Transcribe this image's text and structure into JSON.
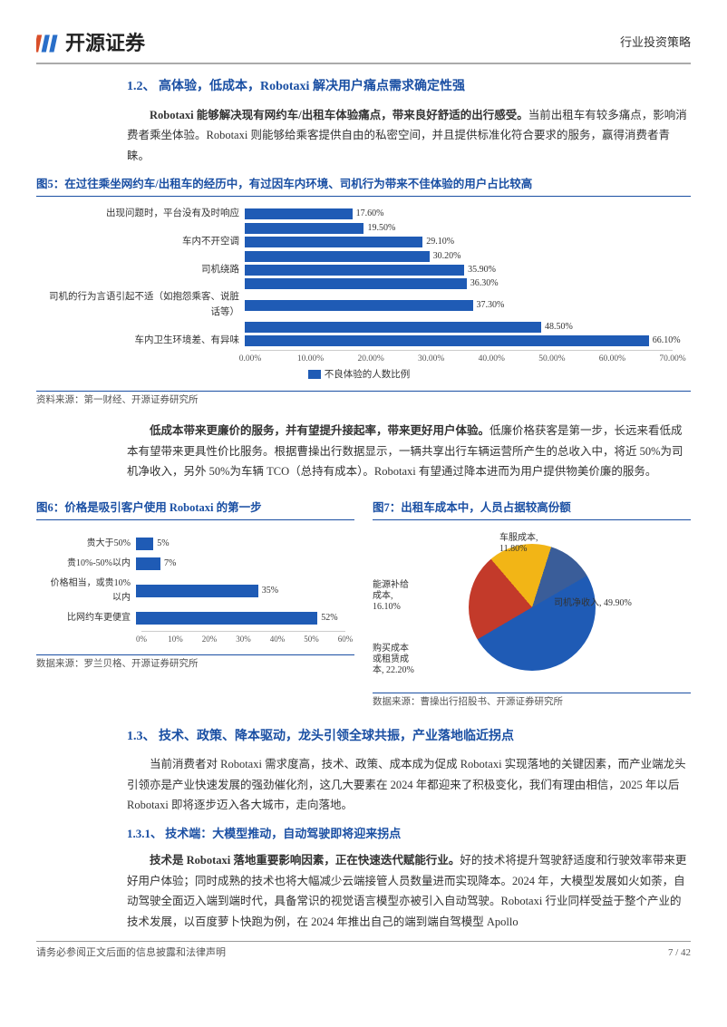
{
  "header": {
    "logo_text": "开源证券",
    "category": "行业投资策略"
  },
  "sec12": {
    "title": "1.2、 高体验，低成本，Robotaxi 解决用户痛点需求确定性强",
    "p1_bold": "Robotaxi 能够解决现有网约车/出租车体验痛点，带来良好舒适的出行感受。",
    "p1_rest": "当前出租车有较多痛点，影响消费者乘坐体验。Robotaxi 则能够给乘客提供自由的私密空间，并且提供标准化符合要求的服务，赢得消费者青睐。"
  },
  "fig5": {
    "title": "图5：在过往乘坐网约车/出租车的经历中，有过因车内环境、司机行为带来不佳体验的用户占比较高",
    "type": "bar_horizontal",
    "xmax": 70,
    "xtick_step": 10,
    "bar_color": "#1f5bb5",
    "categories": [
      "出现问题时，平台没有及时响应",
      "",
      "车内不开空调",
      "",
      "司机绕路",
      "",
      "司机的行为言语引起不适（如抱怨乘客、说脏话等）",
      "",
      "车内卫生环境差、有异味"
    ],
    "values": [
      17.6,
      19.5,
      29.1,
      30.2,
      35.9,
      36.3,
      37.3,
      48.5,
      66.1
    ],
    "legend": "不良体验的人数比例",
    "source": "资料来源：第一财经、开源证券研究所"
  },
  "p2": {
    "bold": "低成本带来更廉价的服务，并有望提升接起率，带来更好用户体验。",
    "rest": "低廉价格获客是第一步，长远来看低成本有望带来更具性价比服务。根据曹操出行数据显示，一辆共享出行车辆运营所产生的总收入中，将近 50%为司机净收入，另外 50%为车辆 TCO（总持有成本）。Robotaxi 有望通过降本进而为用户提供物美价廉的服务。"
  },
  "fig6": {
    "title": "图6：价格是吸引客户使用 Robotaxi 的第一步",
    "type": "bar_horizontal",
    "xmax": 60,
    "xtick_step": 10,
    "bar_color": "#1f5bb5",
    "categories": [
      "贵大于50%",
      "贵10%-50%以内",
      "价格相当，或贵10%以内",
      "比网约车更便宜"
    ],
    "values": [
      5,
      7,
      35,
      52
    ],
    "source": "数据来源：罗兰贝格、开源证券研究所"
  },
  "fig7": {
    "title": "图7：出租车成本中，人员占据较高份额",
    "type": "pie",
    "slices": [
      {
        "label": "司机净收入",
        "value": 49.9,
        "color": "#1f5bb5"
      },
      {
        "label": "购买成本或租赁成本",
        "value": 22.2,
        "color": "#c33a2a"
      },
      {
        "label": "能源补给成本",
        "value": 16.1,
        "color": "#f2b516"
      },
      {
        "label": "车服成本",
        "value": 11.8,
        "color": "#3a5d99"
      }
    ],
    "source": "数据来源：曹操出行招股书、开源证券研究所"
  },
  "sec13": {
    "title": "1.3、 技术、政策、降本驱动，龙头引领全球共振，产业落地临近拐点",
    "p1": "当前消费者对 Robotaxi 需求度高，技术、政策、成本成为促成 Robotaxi 实现落地的关键因素，而产业端龙头引领亦是产业快速发展的强劲催化剂，这几大要素在 2024 年都迎来了积极变化，我们有理由相信，2025 年以后 Robotaxi 即将逐步迈入各大城市，走向落地。",
    "sub_title": "1.3.1、 技术端：大模型推动，自动驾驶即将迎来拐点",
    "p2_bold": "技术是 Robotaxi 落地重要影响因素，正在快速迭代赋能行业。",
    "p2_rest": "好的技术将提升驾驶舒适度和行驶效率带来更好用户体验；同时成熟的技术也将大幅减少云端接管人员数量进而实现降本。2024 年，大模型发展如火如荼，自动驾驶全面迈入端到端时代，具备常识的视觉语言模型亦被引入自动驾驶。Robotaxi 行业同样受益于整个产业的技术发展，以百度萝卜快跑为例，在 2024 年推出自己的端到端自驾模型 Apollo"
  },
  "footer": {
    "left": "请务必参阅正文后面的信息披露和法律声明",
    "right": "7 / 42"
  },
  "colors": {
    "brand_blue": "#1a4fa3",
    "bar_blue": "#1f5bb5"
  }
}
